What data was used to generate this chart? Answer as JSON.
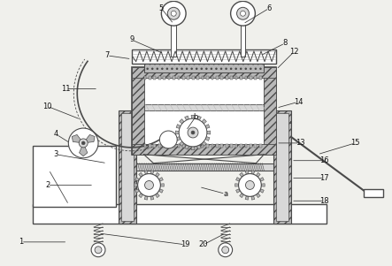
{
  "bg_color": "#f0f0ec",
  "lc": "#4a4a4a",
  "figsize": [
    4.43,
    3.01
  ],
  "dpi": 100,
  "gray1": "#b8b8b8",
  "gray2": "#d8d8d8",
  "white": "#ffffff"
}
